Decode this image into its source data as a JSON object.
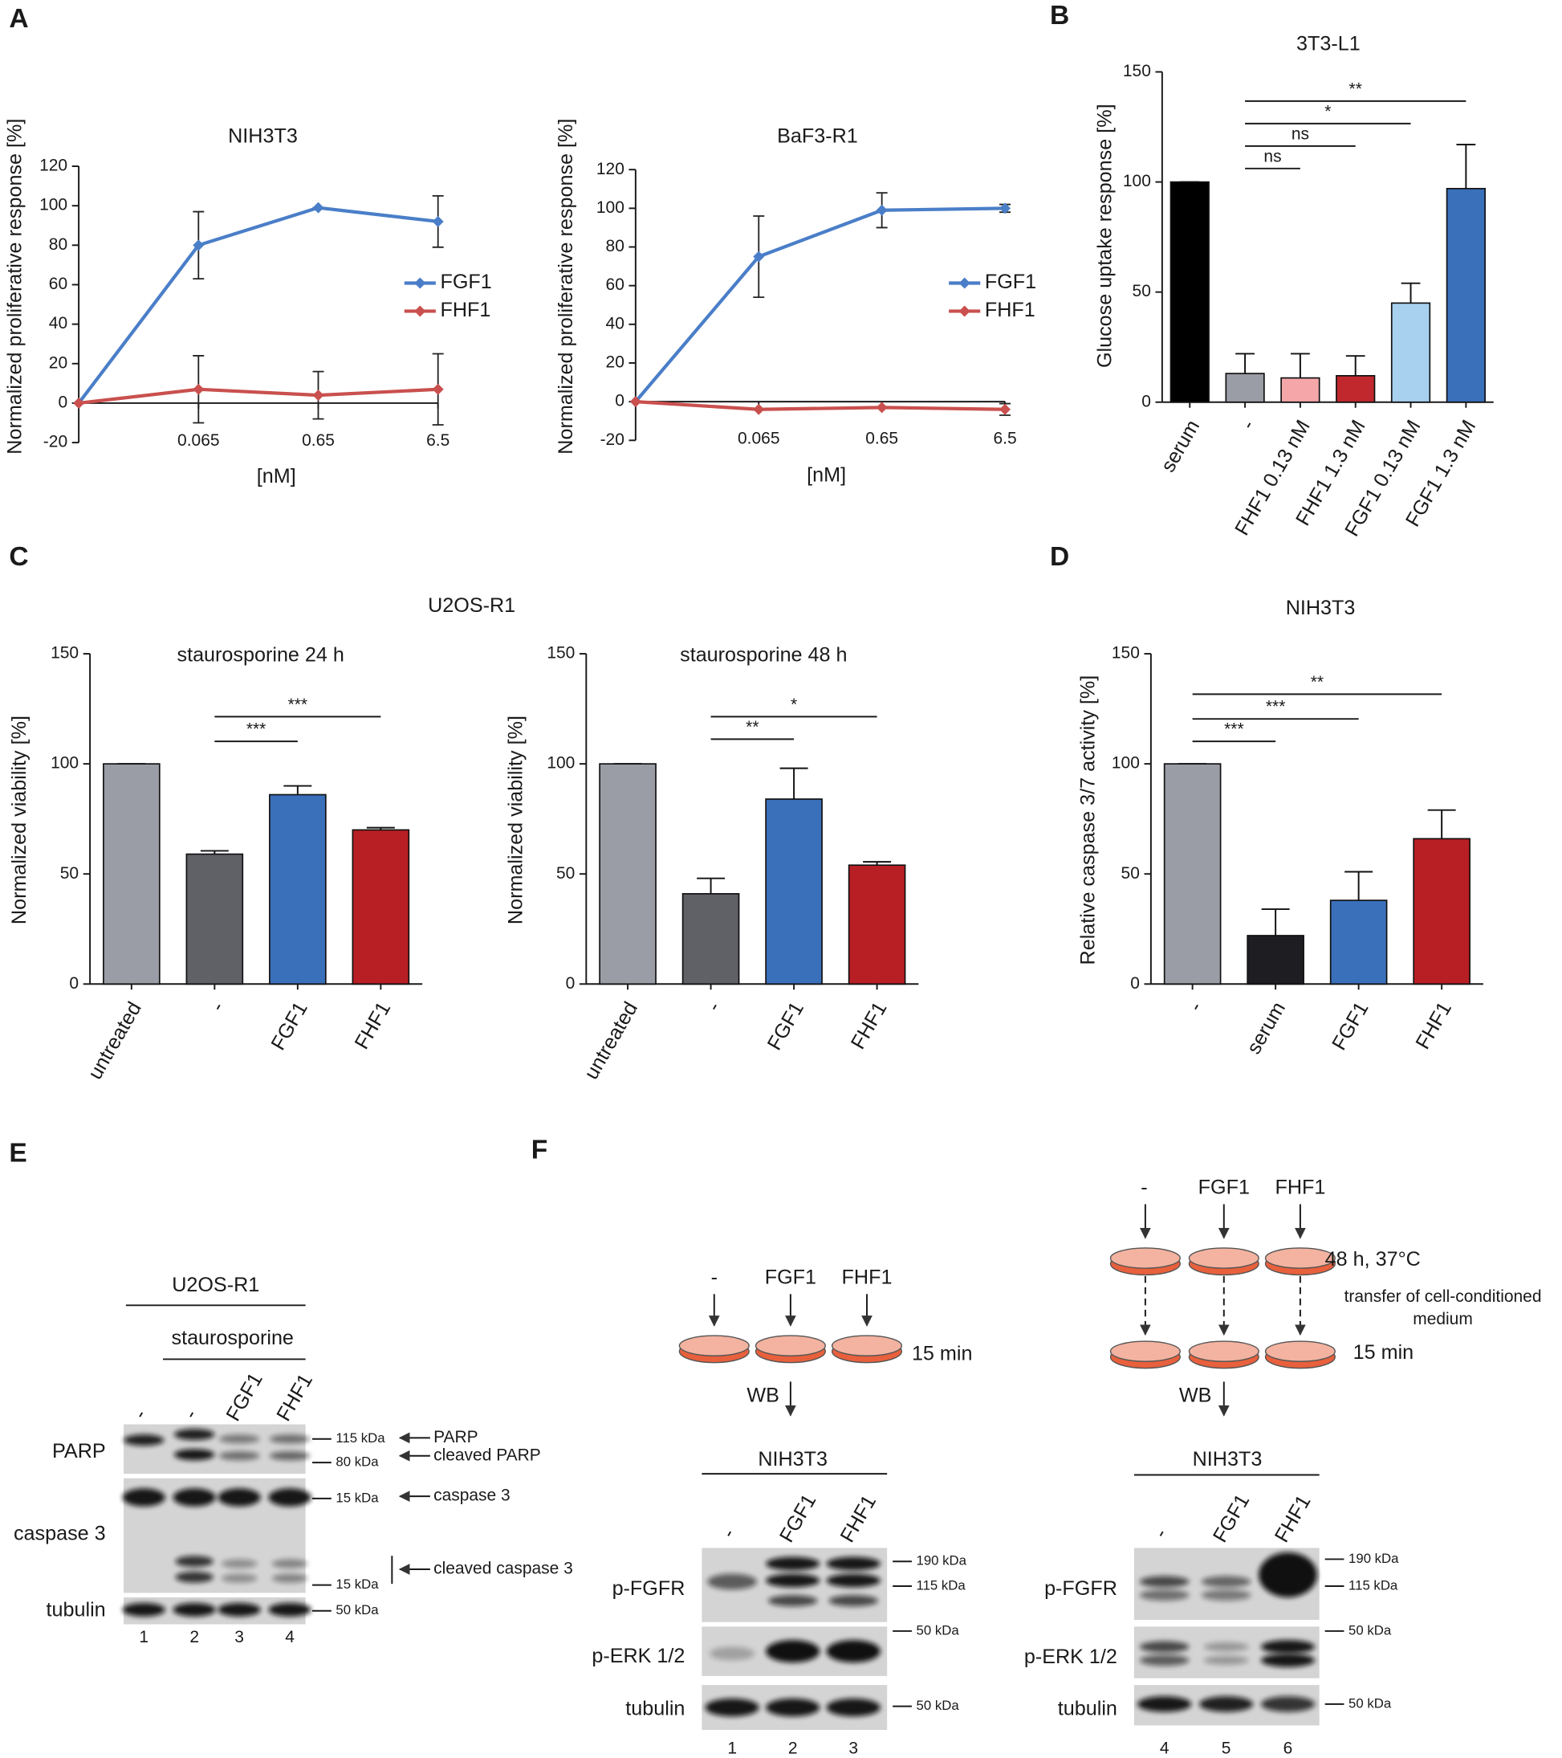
{
  "panel_labels": [
    "A",
    "B",
    "C",
    "D",
    "E",
    "F"
  ],
  "panel_c_title": "U2OS-R1",
  "chart_data": [
    {
      "type": "line",
      "title": "NIH3T3",
      "y_label": "Normalized proliferative response [%]",
      "x_label": "[nM]",
      "categories": [
        null,
        "0.065",
        "0.65",
        "6.5"
      ],
      "series": [
        {
          "name": "FGF1",
          "color": "#4a7ec8",
          "values": [
            0,
            80,
            99,
            92
          ],
          "errors": [
            0,
            17,
            0,
            13
          ]
        },
        {
          "name": "FHF1",
          "color": "#c9504e",
          "values": [
            0,
            7,
            4,
            7
          ],
          "errors": [
            0,
            17,
            12,
            18
          ]
        }
      ],
      "ylim": [
        -20,
        120
      ],
      "yticks": [
        -20,
        0,
        20,
        40,
        60,
        80,
        100,
        120
      ]
    },
    {
      "type": "line",
      "title": "BaF3-R1",
      "y_label": "Normalized proliferative response [%]",
      "x_label": "[nM]",
      "categories": [
        null,
        "0.065",
        "0.65",
        "6.5"
      ],
      "series": [
        {
          "name": "FGF1",
          "color": "#4a7ec8",
          "values": [
            0,
            75,
            99,
            100
          ],
          "errors": [
            0,
            21,
            9,
            2
          ]
        },
        {
          "name": "FHF1",
          "color": "#c9504e",
          "values": [
            0,
            -4,
            -3,
            -4
          ],
          "errors": [
            0,
            0,
            0,
            3
          ]
        }
      ],
      "ylim": [
        -20,
        120
      ],
      "yticks": [
        -20,
        0,
        20,
        40,
        60,
        80,
        100,
        120
      ]
    },
    {
      "type": "bar",
      "title": "3T3-L1",
      "y_label": "Glucose uptake response [%]",
      "categories": [
        "serum",
        "-",
        "FHF1 0.13 nM",
        "FHF1 1.3 nM",
        "FGF1 0.13 nM",
        "FGF1 1.3 nM"
      ],
      "values": [
        100,
        13,
        11,
        12,
        45,
        97
      ],
      "errors": [
        0,
        9,
        11,
        9,
        9,
        20
      ],
      "colors": [
        "#000000",
        "#9a9ca6",
        "#f4a6a8",
        "#c0282e",
        "#a8d0ef",
        "#3a6fba"
      ],
      "significance": [
        "ns",
        "ns",
        "*",
        "**"
      ],
      "ylim": [
        0,
        150
      ],
      "yticks": [
        0,
        50,
        100,
        150
      ]
    },
    {
      "type": "bar",
      "title": "staurosporine 24 h",
      "y_label": "Normalized viability [%]",
      "categories": [
        "untreated",
        "-",
        "FGF1",
        "FHF1"
      ],
      "values": [
        100,
        59,
        86,
        70
      ],
      "errors": [
        0,
        1.5,
        4,
        1
      ],
      "colors": [
        "#9a9ca6",
        "#5f6166",
        "#3a6fba",
        "#b81f25"
      ],
      "significance": [
        "***",
        "***"
      ],
      "ylim": [
        0,
        150
      ],
      "yticks": [
        0,
        50,
        100,
        150
      ]
    },
    {
      "type": "bar",
      "title": "staurosporine 48 h",
      "y_label": "Normalized viability [%]",
      "categories": [
        "untreated",
        "-",
        "FGF1",
        "FHF1"
      ],
      "values": [
        100,
        41,
        84,
        54
      ],
      "errors": [
        0,
        7,
        14,
        1.5
      ],
      "colors": [
        "#9a9ca6",
        "#5f6166",
        "#3a6fba",
        "#b81f25"
      ],
      "significance": [
        "**",
        "*"
      ],
      "ylim": [
        0,
        150
      ],
      "yticks": [
        0,
        50,
        100,
        150
      ]
    },
    {
      "type": "bar",
      "title": "NIH3T3",
      "y_label": "Relative caspase 3/7 activity [%]",
      "categories": [
        "-",
        "serum",
        "FGF1",
        "FHF1"
      ],
      "values": [
        100,
        22,
        38,
        66
      ],
      "errors": [
        0,
        12,
        13,
        13
      ],
      "colors": [
        "#9a9ca6",
        "#1e1e22",
        "#3a6fba",
        "#b81f25"
      ],
      "significance": [
        "***",
        "***",
        "**"
      ],
      "ylim": [
        0,
        150
      ],
      "yticks": [
        0,
        50,
        100,
        150
      ]
    }
  ],
  "blot_e": {
    "cell_line": "U2OS-R1",
    "treatment": "staurosporine",
    "lanes": [
      "-",
      "-",
      "FGF1",
      "FHF1"
    ],
    "rows": [
      "PARP",
      "caspase 3",
      "tubulin"
    ],
    "markers": [
      "115 kDa",
      "80 kDa",
      "15 kDa",
      "15 kDa",
      "50 kDa"
    ],
    "annotations": [
      "PARP",
      "cleaved PARP",
      "caspase 3",
      "cleaved caspase 3"
    ],
    "lane_numbers": [
      1,
      2,
      3,
      4
    ]
  },
  "blot_f": [
    {
      "treatments": [
        "-",
        "FGF1",
        "FHF1"
      ],
      "conditions": [
        "15 min"
      ],
      "method": "WB",
      "cell_line": "NIH3T3",
      "lanes": [
        "-",
        "FGF1",
        "FHF1"
      ],
      "rows": [
        "p-FGFR",
        "p-ERK 1/2",
        "tubulin"
      ],
      "markers": [
        "190 kDa",
        "115 kDa",
        "50 kDa",
        "50 kDa"
      ],
      "lane_numbers": [
        1,
        2,
        3
      ]
    },
    {
      "treatments": [
        "-",
        "FGF1",
        "FHF1"
      ],
      "conditions": [
        "48 h, 37°C",
        "15 min"
      ],
      "transfer": [
        "transfer of cell-conditioned",
        "medium"
      ],
      "method": "WB",
      "cell_line": "NIH3T3",
      "lanes": [
        "-",
        "FGF1",
        "FHF1"
      ],
      "rows": [
        "p-FGFR",
        "p-ERK 1/2",
        "tubulin"
      ],
      "markers": [
        "190 kDa",
        "115 kDa",
        "50 kDa",
        "50 kDa"
      ],
      "lane_numbers": [
        4,
        5,
        6
      ]
    }
  ]
}
